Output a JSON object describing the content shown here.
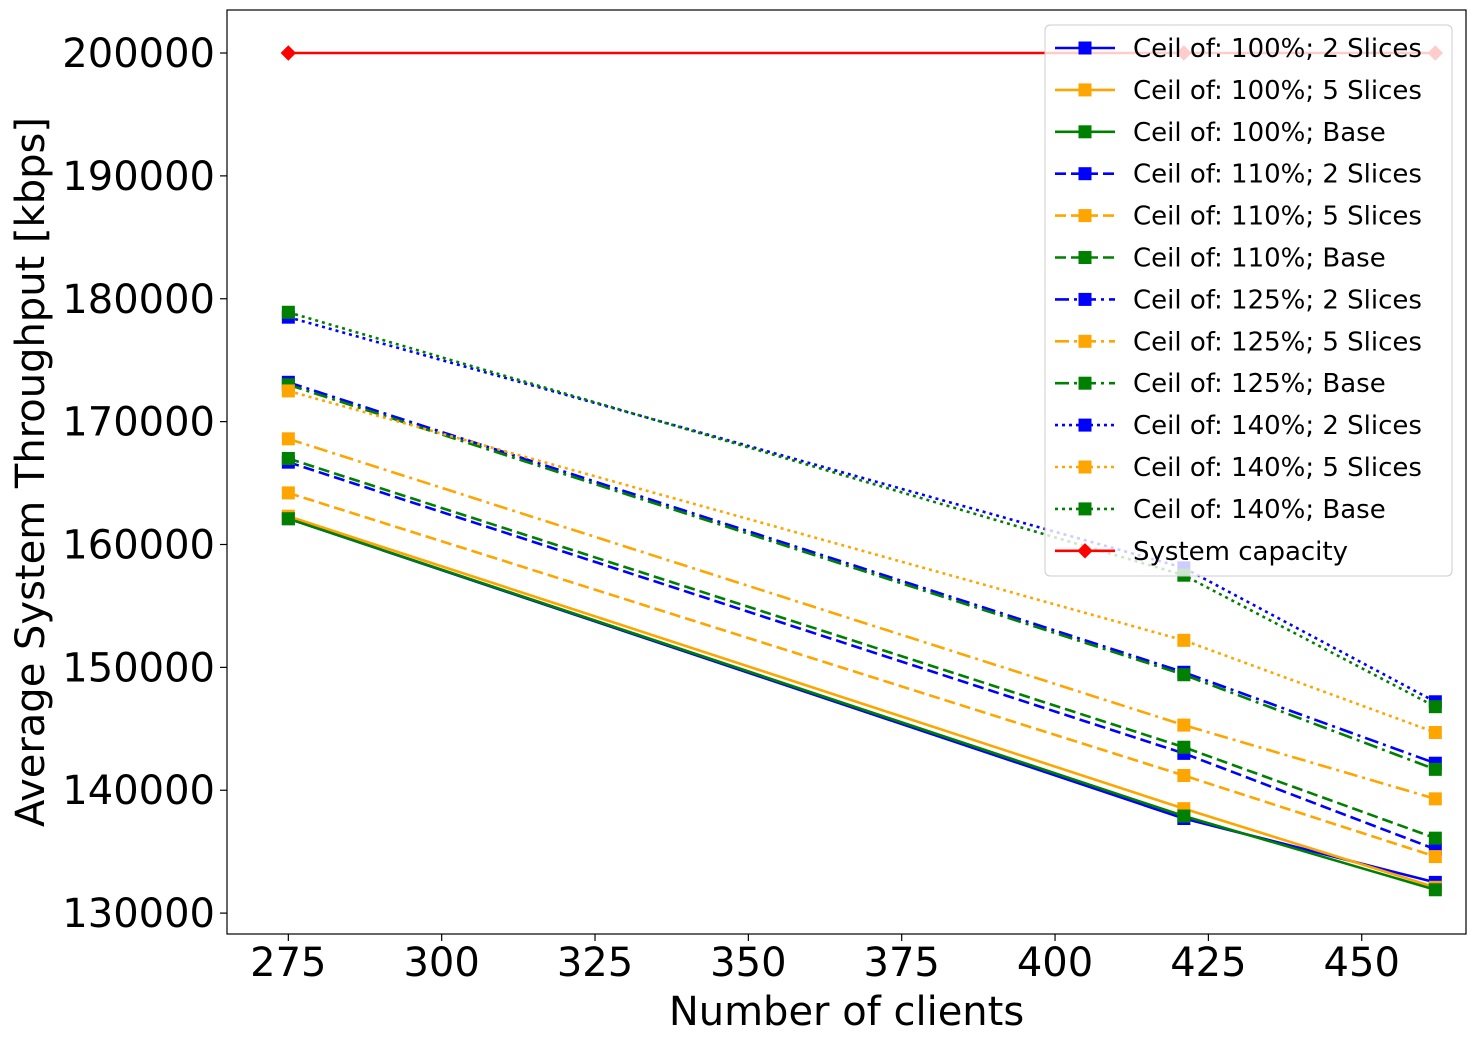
{
  "chart_data": {
    "type": "line",
    "title": "",
    "xlabel": "Number of clients",
    "ylabel": "Average System Throughput [kbps]",
    "xlim": [
      265,
      467
    ],
    "ylim": [
      128300,
      203500
    ],
    "xticks": [
      275,
      300,
      325,
      350,
      375,
      400,
      425,
      450
    ],
    "yticks": [
      130000,
      140000,
      150000,
      160000,
      170000,
      180000,
      190000,
      200000
    ],
    "x": [
      275,
      421,
      462
    ],
    "grid": false,
    "legend_position": "upper right",
    "series": [
      {
        "name": "Ceil of: 100%; 2 Slices",
        "color": "#0000ff",
        "linestyle": "solid",
        "marker": "square",
        "values": [
          162100,
          137700,
          132500
        ]
      },
      {
        "name": "Ceil of: 100%; 5 Slices",
        "color": "#ffa500",
        "linestyle": "solid",
        "marker": "square",
        "values": [
          162300,
          138500,
          132100
        ]
      },
      {
        "name": "Ceil of: 100%; Base",
        "color": "#008000",
        "linestyle": "solid",
        "marker": "square",
        "values": [
          162100,
          137900,
          131900
        ]
      },
      {
        "name": "Ceil of: 110%; 2 Slices",
        "color": "#0000ff",
        "linestyle": "dashed",
        "marker": "square",
        "values": [
          166700,
          143000,
          135200
        ]
      },
      {
        "name": "Ceil of: 110%; 5 Slices",
        "color": "#ffa500",
        "linestyle": "dashed",
        "marker": "square",
        "values": [
          164200,
          141200,
          134600
        ]
      },
      {
        "name": "Ceil of: 110%; Base",
        "color": "#008000",
        "linestyle": "dashed",
        "marker": "square",
        "values": [
          167000,
          143500,
          136100
        ]
      },
      {
        "name": "Ceil of: 125%; 2 Slices",
        "color": "#0000ff",
        "linestyle": "dashdot",
        "marker": "square",
        "values": [
          173200,
          149600,
          142200
        ]
      },
      {
        "name": "Ceil of: 125%; 5 Slices",
        "color": "#ffa500",
        "linestyle": "dashdot",
        "marker": "square",
        "values": [
          168600,
          145300,
          139300
        ]
      },
      {
        "name": "Ceil of: 125%; Base",
        "color": "#008000",
        "linestyle": "dashdot",
        "marker": "square",
        "values": [
          173000,
          149400,
          141700
        ]
      },
      {
        "name": "Ceil of: 140%; 2 Slices",
        "color": "#0000ff",
        "linestyle": "dotted",
        "marker": "square",
        "values": [
          178500,
          158100,
          147200
        ]
      },
      {
        "name": "Ceil of: 140%; 5 Slices",
        "color": "#ffa500",
        "linestyle": "dotted",
        "marker": "square",
        "values": [
          172500,
          152200,
          144700
        ]
      },
      {
        "name": "Ceil of: 140%; Base",
        "color": "#008000",
        "linestyle": "dotted",
        "marker": "square",
        "values": [
          178900,
          157500,
          146800
        ]
      },
      {
        "name": "System capacity",
        "color": "#ff0000",
        "linestyle": "solid",
        "marker": "diamond",
        "values": [
          200000,
          200000,
          200000
        ]
      }
    ]
  }
}
